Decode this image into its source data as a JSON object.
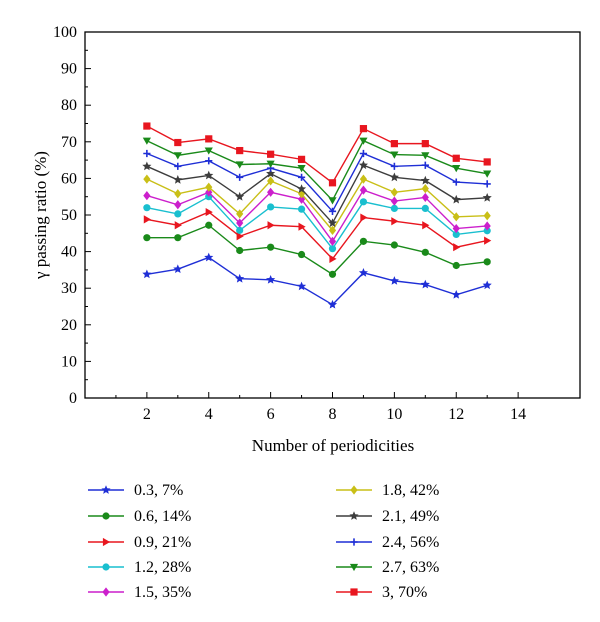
{
  "chart_data": {
    "type": "line",
    "xlabel": "Number of periodicities",
    "ylabel": "γ passing ratio (%)",
    "xlim": [
      0,
      16
    ],
    "ylim": [
      0,
      100
    ],
    "xticks": [
      2,
      4,
      6,
      8,
      10,
      12,
      14
    ],
    "yticks": [
      0,
      10,
      20,
      30,
      40,
      50,
      60,
      70,
      80,
      90,
      100
    ],
    "grid": false,
    "legend_position": "bottom, two columns",
    "x": [
      2,
      3,
      4,
      5,
      6,
      7,
      8,
      9,
      10,
      11,
      12,
      13
    ],
    "series": [
      {
        "name": "0.3, 7%",
        "color": "#1f2fd6",
        "marker": "star",
        "values": [
          33.8,
          35.2,
          38.4,
          32.6,
          32.3,
          30.5,
          25.5,
          34.2,
          32.0,
          31.0,
          28.2,
          30.8
        ]
      },
      {
        "name": "0.6, 14%",
        "color": "#1a8a1a",
        "marker": "circle",
        "values": [
          43.8,
          43.8,
          47.2,
          40.3,
          41.2,
          39.2,
          33.8,
          42.8,
          41.8,
          39.8,
          36.2,
          37.2
        ]
      },
      {
        "name": "0.9, 21%",
        "color": "#e8161f",
        "marker": "triangle-right",
        "values": [
          48.8,
          47.2,
          50.8,
          44.2,
          47.2,
          46.8,
          38.0,
          49.3,
          48.3,
          47.2,
          41.2,
          43.0
        ]
      },
      {
        "name": "1.2, 28%",
        "color": "#19bfcf",
        "marker": "circle",
        "values": [
          52.0,
          50.3,
          55.0,
          45.8,
          52.2,
          51.6,
          40.8,
          53.6,
          51.8,
          51.8,
          44.7,
          45.7
        ]
      },
      {
        "name": "1.5, 35%",
        "color": "#cc1fcc",
        "marker": "diamond",
        "values": [
          55.3,
          52.8,
          56.2,
          47.8,
          56.2,
          54.3,
          42.8,
          56.8,
          53.8,
          54.8,
          46.3,
          47.0
        ]
      },
      {
        "name": "1.8, 42%",
        "color": "#c9bf17",
        "marker": "diamond",
        "values": [
          59.8,
          55.8,
          57.6,
          50.3,
          59.3,
          55.8,
          45.8,
          59.8,
          56.2,
          57.2,
          49.5,
          49.8
        ]
      },
      {
        "name": "2.1, 49%",
        "color": "#3d3d3d",
        "marker": "star",
        "values": [
          63.3,
          59.6,
          60.8,
          55.0,
          61.3,
          57.1,
          47.8,
          63.6,
          60.3,
          59.4,
          54.2,
          54.7
        ]
      },
      {
        "name": "2.4, 56%",
        "color": "#1f2fd6",
        "marker": "plus",
        "values": [
          66.8,
          63.3,
          64.8,
          60.3,
          62.8,
          60.3,
          51.0,
          66.8,
          63.3,
          63.6,
          59.0,
          58.5
        ]
      },
      {
        "name": "2.7, 63%",
        "color": "#1a8a1a",
        "marker": "triangle-down",
        "values": [
          70.3,
          66.3,
          67.6,
          63.8,
          64.0,
          62.8,
          54.0,
          70.3,
          66.5,
          66.3,
          62.8,
          61.3
        ]
      },
      {
        "name": "3, 70%",
        "color": "#e8161f",
        "marker": "square",
        "values": [
          74.3,
          69.8,
          70.8,
          67.6,
          66.6,
          65.2,
          58.8,
          73.6,
          69.5,
          69.5,
          65.5,
          64.5
        ]
      }
    ]
  }
}
